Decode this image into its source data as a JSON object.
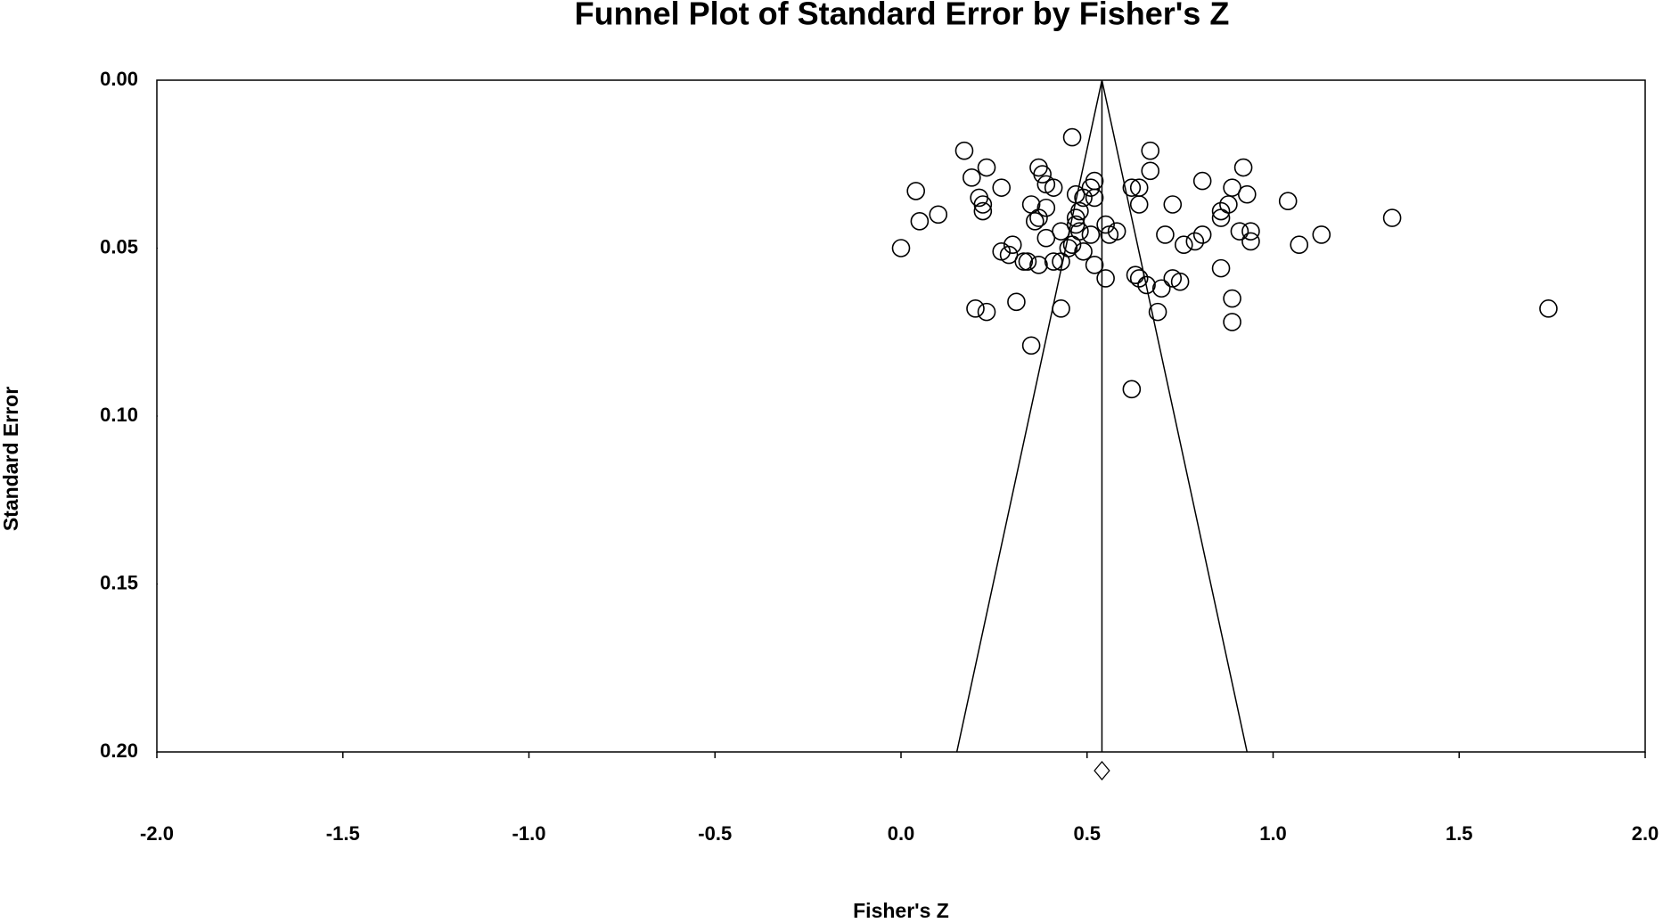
{
  "chart_data": {
    "type": "scatter",
    "title": "Funnel Plot of Standard Error by Fisher's Z",
    "x_label": "Fisher's Z",
    "y_label": "Standard Error",
    "xlim": [
      -2.0,
      2.0
    ],
    "xticks": [
      {
        "value": -2.0,
        "label": "-2.0"
      },
      -1.5,
      {
        "value": -1.0,
        "label": "-1.0"
      },
      -0.5,
      {
        "value": 0.0,
        "label": "0.0"
      },
      0.5,
      {
        "value": 1.0,
        "label": "1.0"
      },
      1.5,
      {
        "value": 2.0,
        "label": "2.0"
      }
    ],
    "ylim": [
      0.0,
      0.2
    ],
    "y_inverted": true,
    "yticks": [
      {
        "value": 0.0,
        "label": "0.00"
      },
      {
        "value": 0.05,
        "label": "0.05"
      },
      {
        "value": 0.1,
        "label": "0.10"
      },
      {
        "value": 0.15,
        "label": "0.15"
      },
      {
        "value": 0.2,
        "label": "0.20"
      }
    ],
    "color": "#000000",
    "x": [
      0.46,
      0.17,
      0.67,
      0.19,
      0.23,
      0.37,
      0.38,
      0.52,
      0.51,
      0.39,
      0.41,
      0.27,
      0.04,
      0.62,
      0.64,
      0.67,
      0.81,
      0.92,
      0.89,
      0.93,
      0.47,
      0.49,
      0.52,
      0.64,
      0.73,
      0.88,
      1.04,
      0.21,
      0.22,
      0.22,
      0.35,
      0.39,
      0.37,
      0.36,
      0.48,
      0.47,
      0.47,
      0.86,
      0.86,
      0.1,
      0.05,
      1.32,
      0.55,
      0.58,
      0.56,
      0.51,
      0.43,
      0.48,
      0.39,
      0.71,
      0.81,
      0.91,
      0.94,
      0.94,
      1.13,
      1.07,
      0.76,
      0.79,
      0.0,
      0.3,
      0.27,
      0.29,
      0.33,
      0.34,
      0.37,
      0.41,
      0.43,
      0.45,
      0.46,
      0.49,
      0.52,
      0.55,
      0.63,
      0.64,
      0.66,
      0.7,
      0.73,
      0.75,
      0.86,
      0.31,
      0.2,
      0.23,
      0.43,
      0.69,
      0.89,
      0.89,
      1.74,
      0.35,
      0.62
    ],
    "values": [
      0.017,
      0.021,
      0.021,
      0.029,
      0.026,
      0.026,
      0.028,
      0.03,
      0.032,
      0.031,
      0.032,
      0.032,
      0.033,
      0.032,
      0.032,
      0.027,
      0.03,
      0.026,
      0.032,
      0.034,
      0.034,
      0.035,
      0.035,
      0.037,
      0.037,
      0.037,
      0.036,
      0.035,
      0.037,
      0.039,
      0.037,
      0.038,
      0.041,
      0.042,
      0.039,
      0.041,
      0.043,
      0.039,
      0.041,
      0.04,
      0.042,
      0.041,
      0.043,
      0.045,
      0.046,
      0.046,
      0.045,
      0.045,
      0.047,
      0.046,
      0.046,
      0.045,
      0.045,
      0.048,
      0.046,
      0.049,
      0.049,
      0.048,
      0.05,
      0.049,
      0.051,
      0.052,
      0.054,
      0.054,
      0.055,
      0.054,
      0.054,
      0.05,
      0.049,
      0.051,
      0.055,
      0.059,
      0.058,
      0.059,
      0.061,
      0.062,
      0.059,
      0.06,
      0.056,
      0.066,
      0.068,
      0.069,
      0.068,
      0.069,
      0.065,
      0.072,
      0.068,
      0.079,
      0.092
    ],
    "funnel": {
      "x": [
        0.15,
        0.54,
        0.93
      ],
      "y": [
        0.2,
        0.0,
        0.2
      ]
    },
    "center_line": {
      "x": [
        0.54,
        0.54
      ],
      "y": [
        0.0,
        0.2
      ]
    },
    "summary": {
      "estimate": 0.54,
      "lower": 0.52,
      "upper": 0.56
    }
  }
}
